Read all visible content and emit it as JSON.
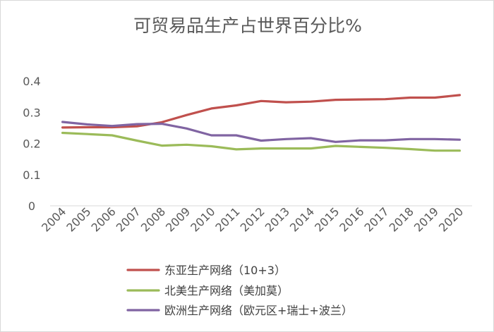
{
  "chart_data": {
    "type": "line",
    "title": "可贸易品生产占世界百分比%",
    "xlabel": "",
    "ylabel": "",
    "x": [
      "2004",
      "2005",
      "2006",
      "2007",
      "2008",
      "2009",
      "2010",
      "2011",
      "2012",
      "2013",
      "2014",
      "2015",
      "2016",
      "2017",
      "2018",
      "2019",
      "2020"
    ],
    "ylim": [
      0,
      0.4
    ],
    "yticks": [
      "0",
      "0.1",
      "0.2",
      "0.3",
      "0.4"
    ],
    "grid": false,
    "legend_position": "bottom",
    "series": [
      {
        "name": "东亚生产网络（10+3）",
        "color": "#c0504d",
        "values": [
          0.251,
          0.252,
          0.252,
          0.255,
          0.268,
          0.291,
          0.312,
          0.322,
          0.336,
          0.332,
          0.334,
          0.34,
          0.341,
          0.342,
          0.347,
          0.347,
          0.355
        ]
      },
      {
        "name": "北美生产网络（美加莫）",
        "color": "#9bbb59",
        "values": [
          0.234,
          0.23,
          0.226,
          0.209,
          0.193,
          0.196,
          0.191,
          0.181,
          0.184,
          0.184,
          0.184,
          0.192,
          0.189,
          0.186,
          0.182,
          0.177,
          0.177
        ]
      },
      {
        "name": "欧洲生产网络（欧元区+瑞士+波兰）",
        "color": "#8064a2",
        "values": [
          0.269,
          0.261,
          0.256,
          0.262,
          0.263,
          0.248,
          0.226,
          0.226,
          0.209,
          0.214,
          0.217,
          0.205,
          0.21,
          0.21,
          0.214,
          0.214,
          0.212
        ]
      }
    ]
  }
}
